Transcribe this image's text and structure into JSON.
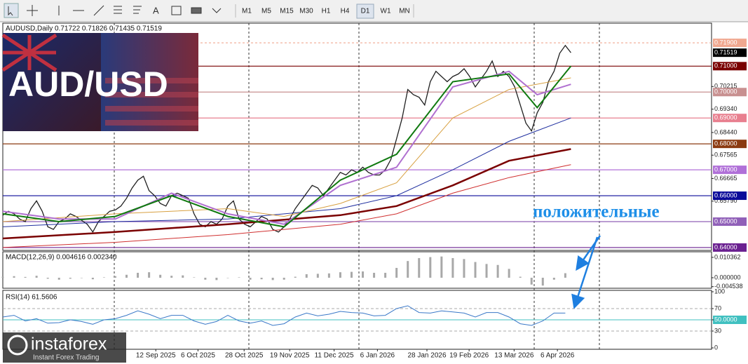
{
  "toolbar": {
    "timeframes": [
      "M1",
      "M5",
      "M15",
      "M30",
      "H1",
      "H4",
      "D1",
      "W1",
      "MN"
    ]
  },
  "banner": {
    "text": "AUD/USD"
  },
  "annotation": "положительные",
  "logo": {
    "name": "instaforex",
    "tagline": "Instant Forex Trading"
  },
  "chart_data": [
    {
      "type": "line",
      "title": "AUDUSD,Daily  0.71722 0.71826 0.71435 0.71519",
      "x": [
        0,
        1,
        2,
        3,
        4,
        5,
        6,
        7,
        8,
        9,
        10,
        11,
        12,
        13,
        14,
        15,
        16,
        17,
        18,
        19,
        20,
        21,
        22,
        23,
        24,
        25,
        26,
        27,
        28,
        29,
        30,
        31,
        32,
        33,
        34,
        35,
        36,
        37,
        38,
        39,
        40,
        41,
        42,
        43,
        44,
        45,
        46,
        47,
        48,
        49,
        50,
        51,
        52,
        53,
        54,
        55,
        56,
        57,
        58,
        59,
        60,
        61,
        62,
        63,
        64,
        65,
        66,
        67,
        68,
        69,
        70,
        71,
        72,
        73,
        74,
        75,
        76,
        77,
        78,
        79,
        80,
        81,
        82,
        83,
        84,
        85,
        86,
        87,
        88,
        89,
        90,
        91,
        92,
        93,
        94,
        95,
        96,
        97,
        98,
        99,
        100,
        101
      ],
      "xlim": [
        0,
        126
      ],
      "ylim": [
        0.6389,
        0.7266
      ],
      "xticks": [
        {
          "value": 27.2,
          "label": "12 Sep 2025"
        },
        {
          "value": 34.7,
          "label": "6 Oct 2025"
        },
        {
          "value": 42.9,
          "label": "28 Oct 2025"
        },
        {
          "value": 51,
          "label": "19 Nov 2025"
        },
        {
          "value": 58.9,
          "label": "11 Dec 2025"
        },
        {
          "value": 66.6,
          "label": "6 Jan 2026"
        },
        {
          "value": 75.4,
          "label": "28 Jan 2026"
        },
        {
          "value": 82.9,
          "label": "19 Feb 2026"
        },
        {
          "value": 90.9,
          "label": "13 Mar 2026"
        },
        {
          "value": 98.6,
          "label": "6 Apr 2026"
        }
      ],
      "yticks": [
        0.70215,
        {
          "value": 0.6934,
          "label": "0.69340"
        },
        {
          "value": 0.6844,
          "label": "0.68440"
        },
        0.67565,
        0.66665,
        {
          "value": 0.6579,
          "label": "0.65790"
        }
      ],
      "levels": [
        {
          "value": 0.719,
          "label": "0.71900",
          "color": "#f0a890",
          "dotted": true
        },
        {
          "value": 0.71,
          "label": "0.71000",
          "color": "#7a0000",
          "dotted": false
        },
        {
          "value": 0.7,
          "label": "0.70000",
          "color": "#c89090",
          "dotted": false
        },
        {
          "value": 0.69,
          "label": "0.69000",
          "color": "#e87f8f",
          "dotted": false
        },
        {
          "value": 0.68,
          "label": "0.68000",
          "color": "#8b3a10",
          "dotted": false
        },
        {
          "value": 0.67,
          "label": "0.67000",
          "color": "#b070d8",
          "dotted": false
        },
        {
          "value": 0.66,
          "label": "0.66000",
          "color": "#0a0a9a",
          "dotted": false
        },
        {
          "value": 0.65,
          "label": "0.65000",
          "color": "#9060b8",
          "dotted": false
        },
        {
          "value": 0.64,
          "label": "0.64000",
          "color": "#6a2090",
          "dotted": false
        }
      ],
      "last_price": 0.71519,
      "series": [
        {
          "color": "#202020",
          "values": [
            0.6525,
            0.654,
            0.653,
            0.651,
            0.65,
            0.655,
            0.658,
            0.654,
            0.648,
            0.647,
            0.65,
            0.651,
            0.653,
            0.652,
            0.6505,
            0.649,
            0.646,
            0.65,
            0.652,
            0.654,
            0.6545,
            0.656,
            0.659,
            0.663,
            0.666,
            0.6675,
            0.662,
            0.66,
            0.657,
            0.656,
            0.66,
            0.661,
            0.66,
            0.659,
            0.653,
            0.649,
            0.648,
            0.65,
            0.649,
            0.651,
            0.656,
            0.658,
            0.651,
            0.649,
            0.648,
            0.65,
            0.652,
            0.651,
            0.647,
            0.646,
            0.648,
            0.651,
            0.655,
            0.658,
            0.661,
            0.664,
            0.663,
            0.66,
            0.663,
            0.666,
            0.669,
            0.668,
            0.67,
            0.669,
            0.671,
            0.669,
            0.668,
            0.668,
            0.67,
            0.674,
            0.682,
            0.69,
            0.701,
            0.699,
            0.698,
            0.695,
            0.704,
            0.708,
            0.706,
            0.704,
            0.706,
            0.707,
            0.709,
            0.706,
            0.702,
            0.705,
            0.708,
            0.712,
            0.706,
            0.708,
            0.706,
            0.702,
            0.695,
            0.688,
            0.685,
            0.692,
            0.696,
            0.704,
            0.708,
            0.715,
            0.718,
            0.7152
          ]
        },
        {
          "color": "#7a0000",
          "width": 2.5,
          "x": [
            0,
            20,
            40,
            60,
            70,
            80,
            90,
            101
          ],
          "values": [
            0.6435,
            0.646,
            0.649,
            0.6525,
            0.656,
            0.664,
            0.6735,
            0.678
          ]
        },
        {
          "color": "#d03030",
          "width": 1,
          "x": [
            0,
            20,
            40,
            60,
            70,
            80,
            90,
            101
          ],
          "values": [
            0.64,
            0.642,
            0.645,
            0.649,
            0.653,
            0.661,
            0.667,
            0.672
          ]
        },
        {
          "color": "#2030a0",
          "width": 1,
          "x": [
            0,
            20,
            40,
            60,
            70,
            80,
            90,
            101
          ],
          "values": [
            0.648,
            0.65,
            0.651,
            0.655,
            0.66,
            0.67,
            0.681,
            0.69
          ]
        },
        {
          "color": "#d8a040",
          "width": 1,
          "x": [
            0,
            20,
            40,
            50,
            60,
            70,
            80,
            90,
            101
          ],
          "values": [
            0.65,
            0.653,
            0.655,
            0.652,
            0.657,
            0.665,
            0.69,
            0.701,
            0.7055
          ]
        },
        {
          "color": "#b070d0",
          "width": 2,
          "x": [
            0,
            10,
            20,
            30,
            40,
            50,
            60,
            70,
            80,
            90,
            95,
            101
          ],
          "values": [
            0.654,
            0.651,
            0.651,
            0.661,
            0.653,
            0.649,
            0.664,
            0.671,
            0.702,
            0.708,
            0.699,
            0.703
          ]
        },
        {
          "color": "#107a10",
          "width": 2,
          "x": [
            0,
            10,
            20,
            30,
            40,
            50,
            60,
            70,
            80,
            90,
            95,
            101
          ],
          "values": [
            0.653,
            0.65,
            0.652,
            0.66,
            0.652,
            0.648,
            0.666,
            0.676,
            0.704,
            0.707,
            0.694,
            0.71
          ]
        }
      ]
    },
    {
      "type": "bar",
      "title": "MACD(12,26,9) 0.004616 0.002340",
      "color": "#a8a8a8",
      "x": [
        0,
        2,
        4,
        6,
        8,
        10,
        12,
        14,
        16,
        18,
        20,
        22,
        24,
        26,
        28,
        30,
        32,
        34,
        36,
        38,
        40,
        42,
        44,
        46,
        48,
        50,
        52,
        54,
        56,
        58,
        60,
        62,
        64,
        66,
        68,
        70,
        72,
        74,
        76,
        78,
        80,
        82,
        84,
        86,
        88,
        90,
        92,
        94,
        96,
        98,
        100
      ],
      "values": [
        0.0005,
        0.0008,
        0.0004,
        0.001,
        -0.0005,
        -0.001,
        -0.0005,
        0,
        -0.0008,
        0.0002,
        0.0008,
        0.0015,
        0.0025,
        0.0028,
        0.0015,
        0.001,
        0.0012,
        0.0002,
        -0.001,
        -0.0012,
        0,
        0.0002,
        -0.001,
        -0.0008,
        -0.0012,
        -0.001,
        0.0005,
        0.0018,
        0.002,
        0.0022,
        0.0028,
        0.003,
        0.0032,
        0.0025,
        0.0025,
        0.005,
        0.0085,
        0.01,
        0.0105,
        0.0108,
        0.01,
        0.0095,
        0.008,
        0.007,
        0.0065,
        0.0045,
        0.0005,
        -0.0035,
        -0.004,
        -0.001,
        0.0023
      ],
      "xlim": [
        0,
        126
      ],
      "ylim": [
        -0.00536,
        0.0132
      ],
      "yticks": [
        0.010362,
        {
          "value": 0,
          "label": "0.000000"
        },
        -0.004538
      ]
    },
    {
      "type": "line",
      "title": "RSI(14) 61.5606",
      "color": "#3a78c8",
      "x": [
        0,
        2,
        4,
        6,
        8,
        10,
        12,
        14,
        16,
        18,
        20,
        22,
        24,
        26,
        28,
        30,
        32,
        34,
        36,
        38,
        40,
        42,
        44,
        46,
        48,
        50,
        52,
        54,
        56,
        58,
        60,
        62,
        64,
        66,
        68,
        70,
        72,
        74,
        76,
        78,
        80,
        82,
        84,
        86,
        88,
        90,
        92,
        94,
        96,
        98,
        100
      ],
      "values": [
        55,
        58,
        48,
        52,
        44,
        45,
        50,
        47,
        42,
        50,
        52,
        58,
        66,
        60,
        52,
        58,
        58,
        48,
        42,
        47,
        58,
        48,
        44,
        48,
        40,
        43,
        55,
        62,
        57,
        60,
        65,
        63,
        62,
        57,
        58,
        70,
        75,
        63,
        62,
        66,
        64,
        62,
        55,
        63,
        63,
        55,
        43,
        40,
        48,
        62,
        62
      ],
      "xlim": [
        0,
        126
      ],
      "ylim": [
        0,
        100
      ],
      "yticks": [
        100,
        70,
        {
          "value": 50,
          "label": "50.0000"
        },
        30,
        0
      ],
      "levels": [
        70,
        30
      ]
    }
  ]
}
